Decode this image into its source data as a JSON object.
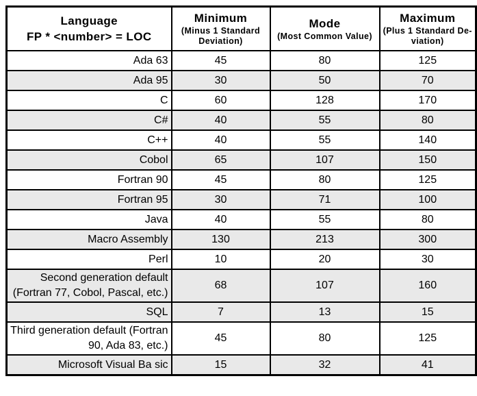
{
  "colors": {
    "row_shade": "#e9e9e9",
    "border": "#000000",
    "background": "#ffffff",
    "text": "#000000"
  },
  "table": {
    "header": {
      "language_title": "Language",
      "language_formula": "FP * <number> = LOC",
      "minimum_title": "Minimum",
      "minimum_subtitle": "(Minus 1 Standard Deviation)",
      "mode_title": "Mode",
      "mode_subtitle": "(Most Common Value)",
      "maximum_title": "Maximum",
      "maximum_subtitle": "(Plus 1 Standard De-viation)"
    },
    "rows": [
      {
        "language": "Ada 63",
        "minimum": "45",
        "mode": "80",
        "maximum": "125",
        "shaded": false
      },
      {
        "language": "Ada 95",
        "minimum": "30",
        "mode": "50",
        "maximum": "70",
        "shaded": true
      },
      {
        "language": "C",
        "minimum": "60",
        "mode": "128",
        "maximum": "170",
        "shaded": false
      },
      {
        "language": "C#",
        "minimum": "40",
        "mode": "55",
        "maximum": "80",
        "shaded": true
      },
      {
        "language": "C++",
        "minimum": "40",
        "mode": "55",
        "maximum": "140",
        "shaded": false
      },
      {
        "language": "Cobol",
        "minimum": "65",
        "mode": "107",
        "maximum": "150",
        "shaded": true
      },
      {
        "language": "Fortran 90",
        "minimum": "45",
        "mode": "80",
        "maximum": "125",
        "shaded": false
      },
      {
        "language": "Fortran 95",
        "minimum": "30",
        "mode": "71",
        "maximum": "100",
        "shaded": true
      },
      {
        "language": "Java",
        "minimum": "40",
        "mode": "55",
        "maximum": "80",
        "shaded": false
      },
      {
        "language": "Macro Assembly",
        "minimum": "130",
        "mode": "213",
        "maximum": "300",
        "shaded": true
      },
      {
        "language": "Perl",
        "minimum": "10",
        "mode": "20",
        "maximum": "30",
        "shaded": false
      },
      {
        "language": "Second generation default (Fortran 77, Cobol, Pascal, etc.)",
        "minimum": "68",
        "mode": "107",
        "maximum": "160",
        "shaded": true
      },
      {
        "language": "SQL",
        "minimum": "7",
        "mode": "13",
        "maximum": "15",
        "shaded": true
      },
      {
        "language": "Third generation default (Fortran 90, Ada 83, etc.)",
        "minimum": "45",
        "mode": "80",
        "maximum": "125",
        "shaded": false
      },
      {
        "language": "Microsoft Visual Ba sic",
        "minimum": "15",
        "mode": "32",
        "maximum": "41",
        "shaded": true
      }
    ]
  }
}
